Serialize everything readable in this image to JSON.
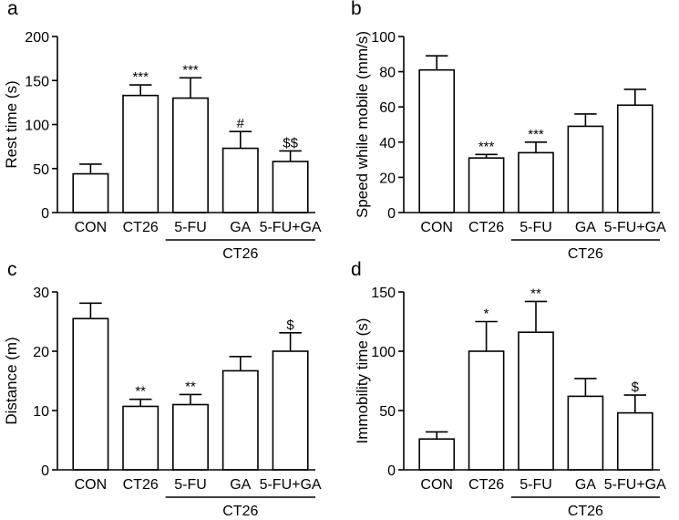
{
  "chart_data": [
    {
      "type": "bar",
      "panel": "a",
      "ylabel": "Rest time (s)",
      "ylim": [
        0,
        200
      ],
      "yticks": [
        0,
        50,
        100,
        150,
        200
      ],
      "categories": [
        "CON",
        "CT26",
        "5-FU",
        "GA",
        "5-FU+GA"
      ],
      "group_label": "CT26",
      "values": [
        44,
        133,
        130,
        73,
        58
      ],
      "errors": [
        11,
        12,
        23,
        19,
        12
      ],
      "annotations": [
        "",
        "***",
        "***",
        "#",
        "$$"
      ]
    },
    {
      "type": "bar",
      "panel": "b",
      "ylabel": "Speed while mobile (mm/s)",
      "ylim": [
        0,
        100
      ],
      "yticks": [
        0,
        20,
        40,
        60,
        80,
        100
      ],
      "categories": [
        "CON",
        "CT26",
        "5-FU",
        "GA",
        "5-FU+GA"
      ],
      "group_label": "CT26",
      "values": [
        81,
        31,
        34,
        49,
        61
      ],
      "errors": [
        8,
        2,
        6,
        7,
        9
      ],
      "annotations": [
        "",
        "***",
        "***",
        "",
        ""
      ]
    },
    {
      "type": "bar",
      "panel": "c",
      "ylabel": "Distance (m)",
      "ylim": [
        0,
        30
      ],
      "yticks": [
        0,
        10,
        20,
        30
      ],
      "categories": [
        "CON",
        "CT26",
        "5-FU",
        "GA",
        "5-FU+GA"
      ],
      "group_label": "CT26",
      "values": [
        25.5,
        10.7,
        11,
        16.7,
        20
      ],
      "errors": [
        2.6,
        1.2,
        1.7,
        2.4,
        3.1
      ],
      "annotations": [
        "",
        "**",
        "**",
        "",
        "$"
      ]
    },
    {
      "type": "bar",
      "panel": "d",
      "ylabel": "Immobility time (s)",
      "ylim": [
        0,
        150
      ],
      "yticks": [
        0,
        50,
        100,
        150
      ],
      "categories": [
        "CON",
        "CT26",
        "5-FU",
        "GA",
        "5-FU+GA"
      ],
      "group_label": "CT26",
      "values": [
        26,
        100,
        116,
        62,
        48
      ],
      "errors": [
        6,
        25,
        26,
        15,
        15
      ],
      "annotations": [
        "",
        "*",
        "**",
        "",
        "$"
      ]
    }
  ]
}
